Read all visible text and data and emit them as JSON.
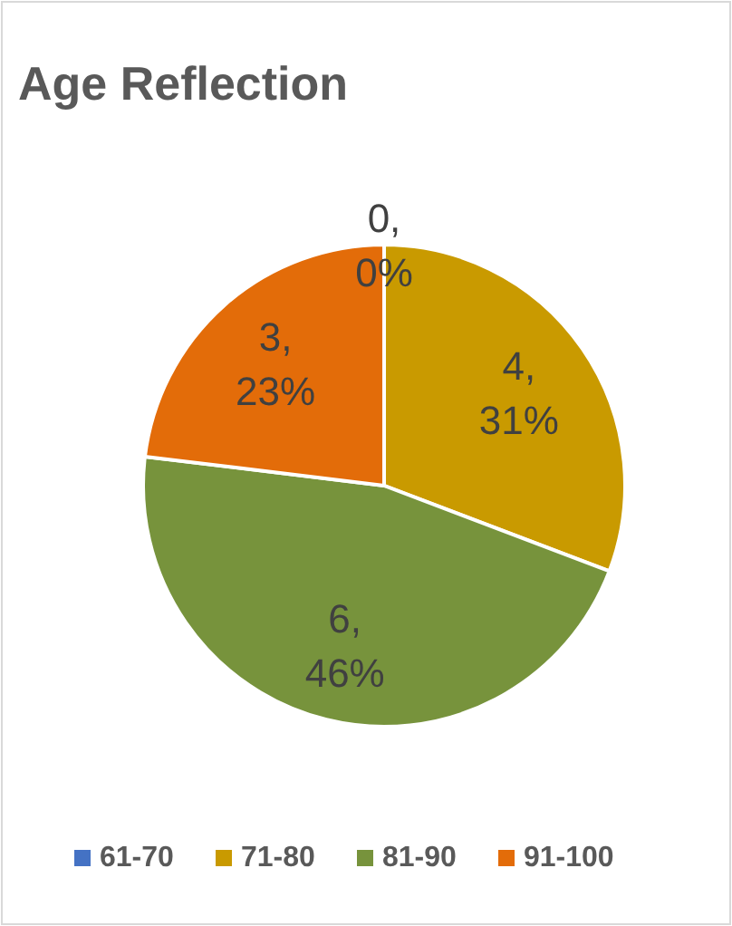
{
  "chart_data": {
    "type": "pie",
    "title": "Age Reflection",
    "categories": [
      "61-70",
      "71-80",
      "81-90",
      "91-100"
    ],
    "values": [
      0,
      4,
      6,
      3
    ],
    "colors": [
      "#4472c4",
      "#c99a00",
      "#77933c",
      "#e36c09"
    ],
    "value_labels": [
      "0, 0%",
      "4, 31%",
      "6, 46%",
      "3, 23%"
    ],
    "legend": "bottom"
  }
}
